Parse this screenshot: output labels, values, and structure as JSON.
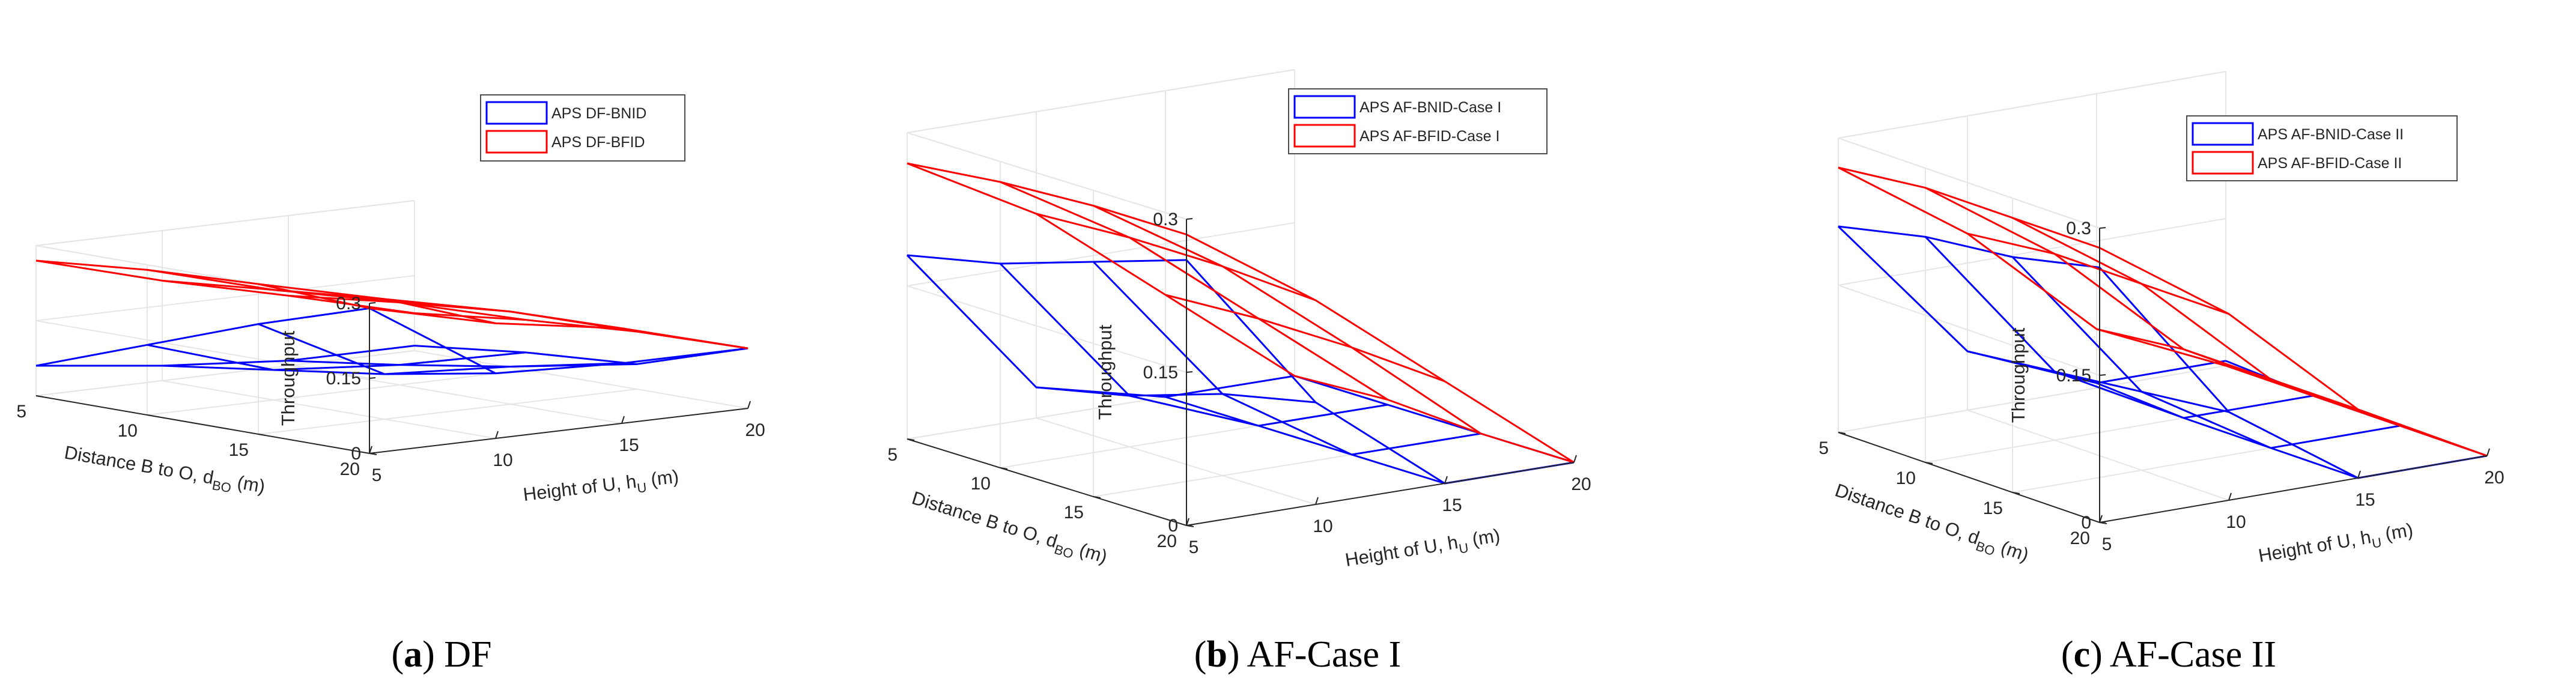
{
  "colors": {
    "bnid": "#0000ff",
    "bfid": "#ff0000",
    "axis": "#262626",
    "grid": "#e6e6e6"
  },
  "chart_data": [
    {
      "type": "surface",
      "id": "a",
      "caption_tag": "(a)",
      "caption_text": "DF",
      "xlabel": "Height of U, h",
      "xlabel_sub": "U",
      "xlabel_unit": "(m)",
      "ylabel": "Distance B to O, d",
      "ylabel_sub": "BO",
      "ylabel_unit": "(m)",
      "zlabel": "Throughput",
      "x": [
        5,
        10,
        15,
        20
      ],
      "y": [
        5,
        10,
        15,
        20
      ],
      "xticks": [
        "5",
        "10",
        "15",
        "20"
      ],
      "yticks": [
        "5",
        "10",
        "15",
        "20"
      ],
      "zticks": [
        "0",
        "0.15",
        "0.3"
      ],
      "zlim": [
        0,
        0.3
      ],
      "grid": true,
      "legend_position": "top-right",
      "series": [
        {
          "name": "APS DF-BNID",
          "color": "#0000ff",
          "z": [
            [
              0.29,
              0.13,
              0.12,
              0.12
            ],
            [
              0.22,
              0.09,
              0.075,
              0.05
            ],
            [
              0.14,
              0.06,
              0.04,
              0.035
            ],
            [
              0.06,
              0.03,
              0.01,
              0.01
            ]
          ]
        },
        {
          "name": "APS DF-BFID",
          "color": "#ff0000",
          "z": [
            [
              0.29,
              0.23,
              0.19,
              0.12
            ],
            [
              0.3,
              0.24,
              0.185,
              0.115
            ],
            [
              0.29,
              0.22,
              0.165,
              0.1
            ],
            [
              0.27,
              0.2,
              0.14,
              0.075
            ]
          ]
        }
      ]
    },
    {
      "type": "surface",
      "id": "b",
      "caption_tag": "(b)",
      "caption_text": "AF-Case I",
      "xlabel": "Height of U, h",
      "xlabel_sub": "U",
      "xlabel_unit": "(m)",
      "ylabel": "Distance B to O, d",
      "ylabel_sub": "BO",
      "ylabel_unit": "(m)",
      "zlabel": "Throughput",
      "x": [
        5,
        10,
        15,
        20
      ],
      "y": [
        5,
        10,
        15,
        20
      ],
      "xticks": [
        "5",
        "10",
        "15",
        "20"
      ],
      "yticks": [
        "5",
        "10",
        "15",
        "20"
      ],
      "zticks": [
        "0",
        "0.15",
        "0.3"
      ],
      "zlim": [
        0,
        0.3
      ],
      "grid": true,
      "legend_position": "top-right",
      "series": [
        {
          "name": "APS AF-BNID-Case I",
          "color": "#0000ff",
          "z": [
            [
              0.26,
              0.1,
              0.0,
              0.0
            ],
            [
              0.23,
              0.08,
              0.0,
              0.0
            ],
            [
              0.2,
              0.05,
              0.0,
              0.0
            ],
            [
              0.18,
              0.03,
              0.0,
              0.0
            ]
          ]
        },
        {
          "name": "APS AF-BFID-Case I",
          "color": "#ff0000",
          "z": [
            [
              0.285,
              0.2,
              0.1,
              0.0
            ],
            [
              0.285,
              0.205,
              0.105,
              0.0
            ],
            [
              0.28,
              0.205,
              0.105,
              0.005
            ],
            [
              0.27,
              0.2,
              0.1,
              0.0
            ]
          ]
        }
      ]
    },
    {
      "type": "surface",
      "id": "c",
      "caption_tag": "(c)",
      "caption_text": "AF-Case II",
      "xlabel": "Height of U, h",
      "xlabel_sub": "U",
      "xlabel_unit": "(m)",
      "ylabel": "Distance B to O, d",
      "ylabel_sub": "BO",
      "ylabel_unit": "(m)",
      "zlabel": "Throughput",
      "x": [
        5,
        10,
        15,
        20
      ],
      "y": [
        5,
        10,
        15,
        20
      ],
      "xticks": [
        "5",
        "10",
        "15",
        "20"
      ],
      "yticks": [
        "5",
        "10",
        "15",
        "20"
      ],
      "zticks": [
        "0",
        "0.15",
        "0.3"
      ],
      "zlim": [
        0,
        0.3
      ],
      "grid": true,
      "legend_position": "top-right",
      "series": [
        {
          "name": "APS AF-BNID-Case II",
          "color": "#0000ff",
          "z": [
            [
              0.26,
              0.09,
              0.0,
              0.0
            ],
            [
              0.24,
              0.08,
              0.0,
              0.0
            ],
            [
              0.23,
              0.07,
              0.0,
              0.0
            ],
            [
              0.21,
              0.06,
              0.005,
              0.005
            ]
          ]
        },
        {
          "name": "APS AF-BFID-Case II",
          "color": "#ff0000",
          "z": [
            [
              0.28,
              0.19,
              0.07,
              0.0
            ],
            [
              0.28,
              0.19,
              0.07,
              0.0
            ],
            [
              0.28,
              0.19,
              0.07,
              0.0
            ],
            [
              0.27,
              0.18,
              0.06,
              0.0
            ]
          ]
        }
      ]
    }
  ]
}
